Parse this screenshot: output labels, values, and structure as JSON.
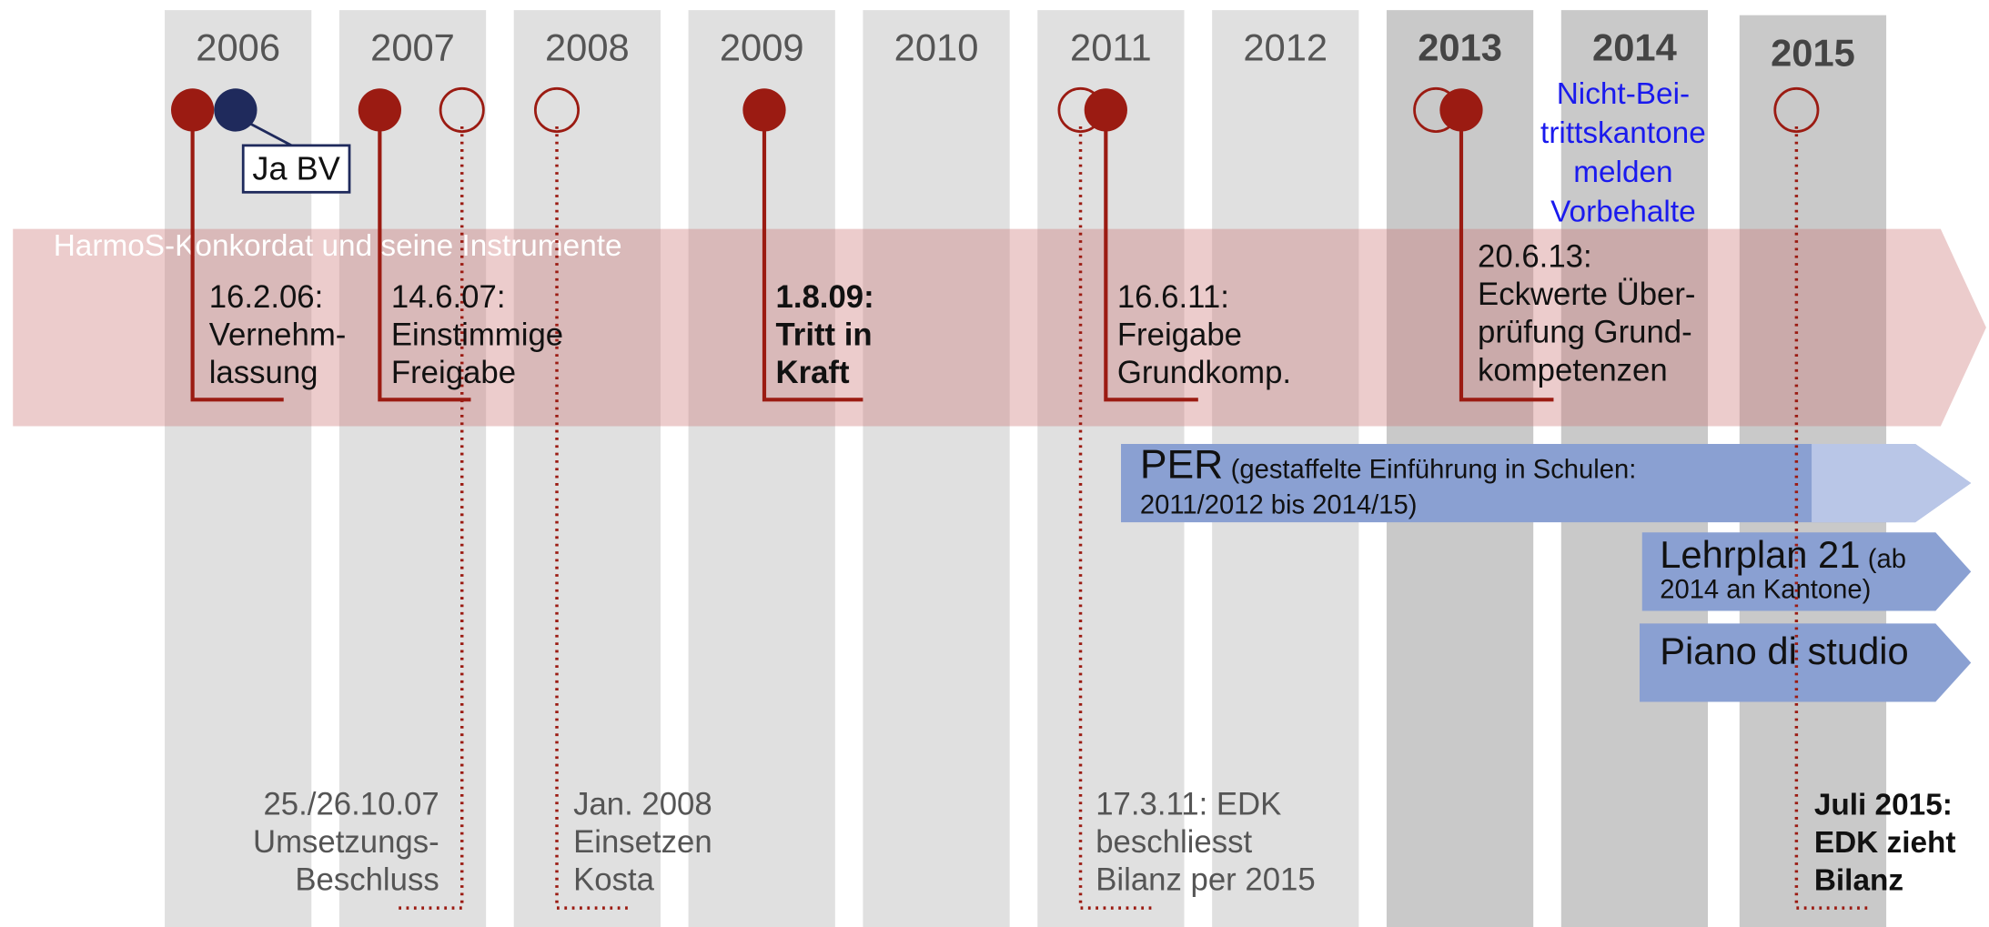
{
  "years": [
    "2006",
    "2007",
    "2008",
    "2009",
    "2010",
    "2011",
    "2012",
    "2013",
    "2014",
    "2015"
  ],
  "band_title": "HarmoS-Konkordat und seine Instrumente",
  "annotation": "Ja BV",
  "note_2014": [
    "Nicht-Bei-",
    "trittskantone",
    "melden",
    "Vorbehalte"
  ],
  "upper_events": [
    {
      "lines": [
        "16.2.06:",
        "Vernehm-",
        "lassung"
      ]
    },
    {
      "lines": [
        "14.6.07:",
        "Einstimmige",
        "Freigabe"
      ]
    },
    {
      "lines": [
        "1.8.09:",
        "Tritt in",
        "Kraft"
      ]
    },
    {
      "lines": [
        "16.6.11:",
        "Freigabe",
        "Grundkomp."
      ]
    },
    {
      "lines": [
        "20.6.13:",
        "Eckwerte Über-",
        "prüfung Grund-",
        "kompetenzen"
      ]
    }
  ],
  "lower_events": [
    {
      "lines": [
        "25./26.10.07",
        "Umsetzungs-",
        "Beschluss"
      ]
    },
    {
      "lines": [
        "Jan. 2008",
        "Einsetzen",
        "Kosta"
      ]
    },
    {
      "lines": [
        "17.3.11: EDK",
        "beschliesst",
        "Bilanz per 2015"
      ]
    },
    {
      "lines": [
        "Juli 2015:",
        "EDK zieht",
        "Bilanz"
      ]
    }
  ],
  "bars": [
    {
      "title": "PER",
      "detail": [
        "(gestaffelte Einführung in Schulen:",
        "2011/2012 bis 2014/15)"
      ]
    },
    {
      "title": "Lehrplan 21",
      "detail": [
        "(ab",
        "2014 an Kantone)"
      ]
    },
    {
      "title": "Piano di studio",
      "detail": []
    }
  ]
}
